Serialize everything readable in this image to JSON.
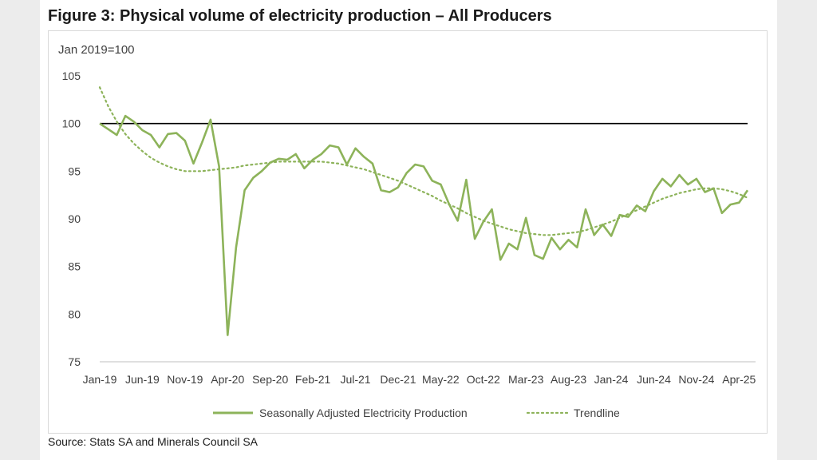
{
  "figure_title": "Figure 3: Physical volume of electricity production – All Producers",
  "source": "Source: Stats SA and Minerals Council SA",
  "colors": {
    "series": "#8db35a",
    "reference_line": "#000000",
    "axis": "#bfbfbf",
    "text": "#404040"
  },
  "chart_data": {
    "type": "line",
    "title": "Figure 3: Physical volume of electricity production – All Producers",
    "ylabel": "Jan 2019=100",
    "ylim": [
      75,
      105
    ],
    "yticks": [
      75,
      80,
      85,
      90,
      95,
      100,
      105
    ],
    "grid": false,
    "legend_position": "bottom",
    "x_tick_labels": [
      "Jan-19",
      "Jun-19",
      "Nov-19",
      "Apr-20",
      "Sep-20",
      "Feb-21",
      "Jul-21",
      "Dec-21",
      "May-22",
      "Oct-22",
      "Mar-23",
      "Aug-23",
      "Jan-24",
      "Jun-24",
      "Nov-24",
      "Apr-25"
    ],
    "reference_line": {
      "y": 100
    },
    "series": [
      {
        "name": "Seasonally Adjusted Electricity Production",
        "style": "solid",
        "start": "Jan-19",
        "values": [
          100.0,
          99.4,
          98.8,
          100.8,
          100.2,
          99.3,
          98.8,
          97.5,
          98.9,
          99.0,
          98.2,
          95.8,
          98.0,
          100.4,
          95.5,
          77.8,
          87.0,
          93.0,
          94.3,
          95.0,
          95.9,
          96.3,
          96.2,
          96.8,
          95.3,
          96.2,
          96.8,
          97.7,
          97.5,
          95.7,
          97.4,
          96.5,
          95.8,
          93.0,
          92.8,
          93.3,
          94.8,
          95.7,
          95.5,
          94.0,
          93.6,
          91.5,
          89.8,
          94.1,
          87.9,
          89.7,
          91.0,
          85.7,
          87.4,
          86.8,
          90.1,
          86.2,
          85.8,
          88.0,
          86.8,
          87.8,
          87.0,
          91.0,
          88.3,
          89.4,
          88.2,
          90.4,
          90.2,
          91.4,
          90.8,
          92.9,
          94.2,
          93.4,
          94.6,
          93.6,
          94.2,
          92.8,
          93.2,
          90.6,
          91.5,
          91.7,
          93.0
        ]
      },
      {
        "name": "Trendline",
        "style": "dotted",
        "start": "Jan-19",
        "values": [
          103.8,
          101.8,
          100.2,
          98.9,
          97.9,
          97.1,
          96.4,
          95.9,
          95.5,
          95.2,
          95.0,
          95.0,
          95.0,
          95.1,
          95.2,
          95.3,
          95.4,
          95.6,
          95.7,
          95.8,
          95.9,
          96.0,
          96.0,
          96.0,
          96.0,
          96.0,
          96.0,
          95.9,
          95.8,
          95.6,
          95.4,
          95.2,
          94.9,
          94.6,
          94.3,
          94.0,
          93.6,
          93.2,
          92.8,
          92.4,
          91.9,
          91.5,
          91.1,
          90.6,
          90.2,
          89.8,
          89.5,
          89.2,
          88.9,
          88.7,
          88.5,
          88.4,
          88.3,
          88.3,
          88.4,
          88.5,
          88.6,
          88.8,
          89.1,
          89.4,
          89.7,
          90.1,
          90.5,
          90.9,
          91.3,
          91.7,
          92.1,
          92.4,
          92.7,
          92.9,
          93.1,
          93.2,
          93.2,
          93.1,
          92.9,
          92.6,
          92.2
        ]
      }
    ]
  }
}
